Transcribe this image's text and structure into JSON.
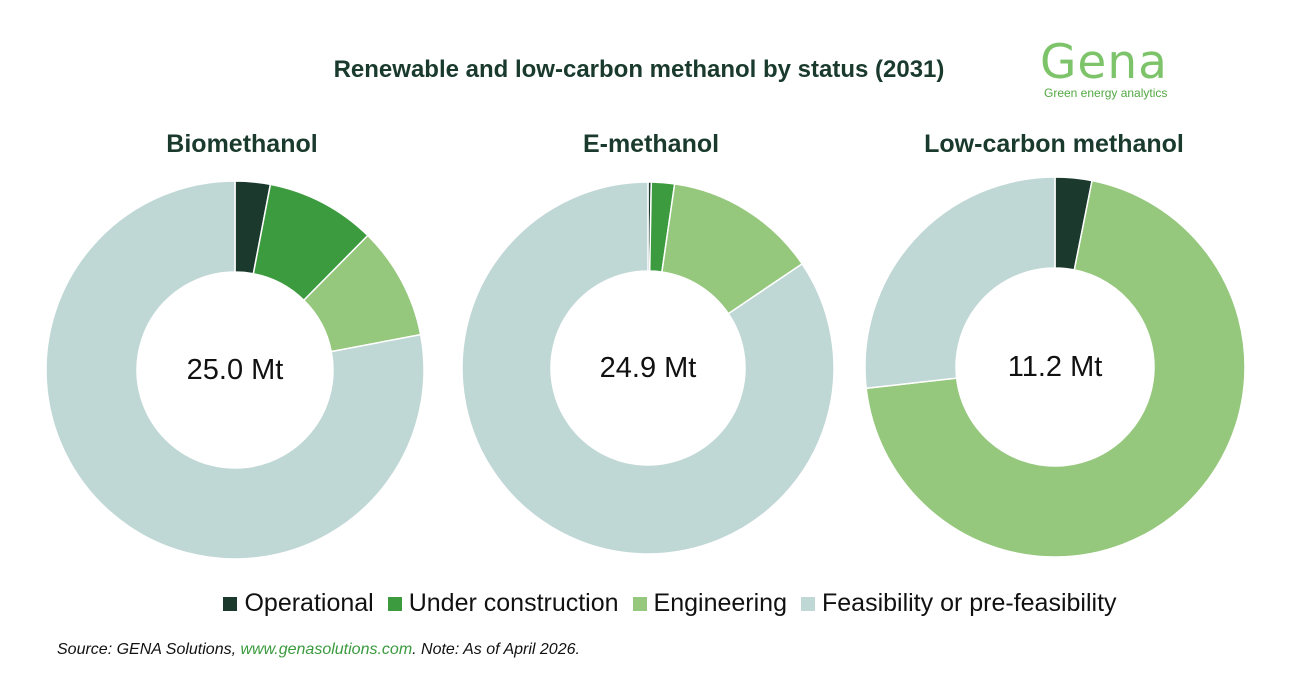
{
  "title": "Renewable and low-carbon methanol by status (2031)",
  "logo": {
    "name": "Gena",
    "tagline": "Green energy analytics"
  },
  "colors": {
    "Operational": "#1b3a2d",
    "Under construction": "#3d9b3f",
    "Engineering": "#95c77c",
    "Feasibility or pre-feasibility": "#bfd7d5"
  },
  "legend": [
    "Operational",
    "Under construction",
    "Engineering",
    "Feasibility or pre-feasibility"
  ],
  "chart_data": [
    {
      "type": "pie",
      "title": "Biomethanol",
      "center_label": "25.0 Mt",
      "categories": [
        "Operational",
        "Under construction",
        "Engineering",
        "Feasibility or pre-feasibility"
      ],
      "values": [
        0.75,
        2.35,
        2.4,
        19.5
      ]
    },
    {
      "type": "pie",
      "title": "E-methanol",
      "center_label": "24.9 Mt",
      "categories": [
        "Operational",
        "Under construction",
        "Engineering",
        "Feasibility or pre-feasibility"
      ],
      "values": [
        0.07,
        0.5,
        3.3,
        21.03
      ]
    },
    {
      "type": "pie",
      "title": "Low-carbon methanol",
      "center_label": "11.2 Mt",
      "categories": [
        "Operational",
        "Under construction",
        "Engineering",
        "Feasibility or pre-feasibility"
      ],
      "values": [
        0.35,
        0.0,
        7.85,
        3.0
      ]
    }
  ],
  "source": {
    "prefix": "Source: GENA Solutions, ",
    "link": "www.genasolutions.com",
    "suffix": ". Note: As of April 2026."
  }
}
